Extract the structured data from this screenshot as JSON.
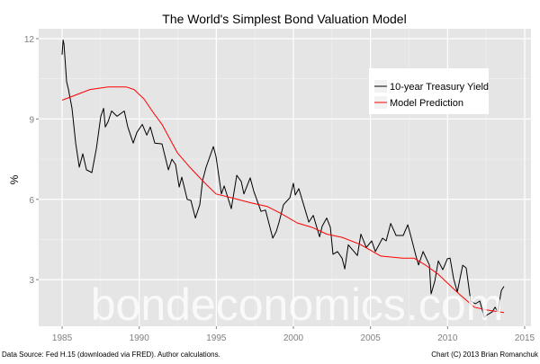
{
  "chart_data": {
    "type": "line",
    "title": "The World's Simplest Bond Valuation Model",
    "xlabel": "",
    "ylabel": "%",
    "xlim": [
      1983.48,
      2015.41
    ],
    "ylim": [
      1.26,
      12.37
    ],
    "xticks": [
      1985,
      1990,
      1995,
      2000,
      2005,
      2010,
      2015
    ],
    "yticks": [
      3,
      6,
      9,
      12
    ],
    "grid": true,
    "legend_position": "top-right",
    "background": "#e5e5e5",
    "series": [
      {
        "name": "10-year Treasury Yield",
        "color": "#000000",
        "points": [
          [
            1985.0,
            11.4
          ],
          [
            1985.06,
            11.95
          ],
          [
            1985.12,
            11.8
          ],
          [
            1985.29,
            10.4
          ],
          [
            1985.41,
            10.1
          ],
          [
            1985.64,
            9.4
          ],
          [
            1985.88,
            8.1
          ],
          [
            1986.11,
            7.2
          ],
          [
            1986.34,
            7.7
          ],
          [
            1986.58,
            7.1
          ],
          [
            1986.93,
            7.0
          ],
          [
            1987.22,
            7.9
          ],
          [
            1987.51,
            9.1
          ],
          [
            1987.69,
            9.4
          ],
          [
            1987.8,
            8.7
          ],
          [
            1987.98,
            8.9
          ],
          [
            1988.21,
            9.3
          ],
          [
            1988.56,
            9.1
          ],
          [
            1989.03,
            9.3
          ],
          [
            1989.26,
            8.7
          ],
          [
            1989.61,
            8.1
          ],
          [
            1989.85,
            8.5
          ],
          [
            1990.2,
            8.8
          ],
          [
            1990.49,
            8.4
          ],
          [
            1990.72,
            8.7
          ],
          [
            1991.01,
            8.1
          ],
          [
            1991.48,
            8.07
          ],
          [
            1991.89,
            7.1
          ],
          [
            1992.12,
            7.5
          ],
          [
            1992.36,
            7.3
          ],
          [
            1992.59,
            6.46
          ],
          [
            1992.76,
            6.83
          ],
          [
            1993.11,
            6.0
          ],
          [
            1993.35,
            5.96
          ],
          [
            1993.64,
            5.3
          ],
          [
            1993.93,
            5.8
          ],
          [
            1994.11,
            6.7
          ],
          [
            1994.34,
            7.2
          ],
          [
            1994.81,
            7.97
          ],
          [
            1994.98,
            7.6
          ],
          [
            1995.33,
            6.2
          ],
          [
            1995.51,
            6.5
          ],
          [
            1995.97,
            5.65
          ],
          [
            1996.33,
            6.9
          ],
          [
            1996.62,
            6.66
          ],
          [
            1996.79,
            6.2
          ],
          [
            1997.2,
            6.8
          ],
          [
            1997.43,
            6.3
          ],
          [
            1997.9,
            5.55
          ],
          [
            1998.19,
            5.6
          ],
          [
            1998.66,
            4.55
          ],
          [
            1998.89,
            4.8
          ],
          [
            1999.07,
            5.15
          ],
          [
            1999.36,
            5.8
          ],
          [
            1999.77,
            6.06
          ],
          [
            2000.0,
            6.6
          ],
          [
            2000.12,
            6.16
          ],
          [
            2000.35,
            6.4
          ],
          [
            2000.65,
            5.83
          ],
          [
            2001.0,
            5.15
          ],
          [
            2001.29,
            5.4
          ],
          [
            2001.7,
            4.6
          ],
          [
            2001.87,
            5.0
          ],
          [
            2002.16,
            5.3
          ],
          [
            2002.4,
            4.95
          ],
          [
            2002.57,
            3.95
          ],
          [
            2002.86,
            4.05
          ],
          [
            2003.16,
            3.8
          ],
          [
            2003.33,
            3.4
          ],
          [
            2003.56,
            4.3
          ],
          [
            2004.15,
            3.9
          ],
          [
            2004.38,
            4.7
          ],
          [
            2004.73,
            4.2
          ],
          [
            2005.08,
            4.45
          ],
          [
            2005.32,
            4.05
          ],
          [
            2005.78,
            4.55
          ],
          [
            2006.02,
            4.45
          ],
          [
            2006.31,
            5.1
          ],
          [
            2006.66,
            4.65
          ],
          [
            2007.12,
            4.65
          ],
          [
            2007.42,
            5.05
          ],
          [
            2007.65,
            4.55
          ],
          [
            2007.94,
            3.9
          ],
          [
            2008.12,
            3.55
          ],
          [
            2008.41,
            4.05
          ],
          [
            2008.82,
            3.55
          ],
          [
            2008.93,
            2.47
          ],
          [
            2009.17,
            2.94
          ],
          [
            2009.4,
            3.7
          ],
          [
            2009.69,
            3.37
          ],
          [
            2009.99,
            3.78
          ],
          [
            2010.16,
            3.8
          ],
          [
            2010.39,
            3.04
          ],
          [
            2010.63,
            2.54
          ],
          [
            2010.98,
            3.54
          ],
          [
            2011.21,
            3.44
          ],
          [
            2011.5,
            2.2
          ],
          [
            2011.8,
            2.1
          ],
          [
            2012.09,
            2.2
          ],
          [
            2012.38,
            1.6
          ],
          [
            2012.61,
            1.7
          ],
          [
            2012.9,
            1.8
          ],
          [
            2013.08,
            1.97
          ],
          [
            2013.25,
            1.8
          ],
          [
            2013.49,
            2.6
          ],
          [
            2013.66,
            2.75
          ]
        ]
      },
      {
        "name": "Model Prediction",
        "color": "#ff0000",
        "points": [
          [
            1985.0,
            9.7
          ],
          [
            1986.81,
            10.1
          ],
          [
            1987.98,
            10.2
          ],
          [
            1989.14,
            10.2
          ],
          [
            1989.67,
            10.1
          ],
          [
            1990.31,
            9.75
          ],
          [
            1990.9,
            9.25
          ],
          [
            1991.48,
            8.8
          ],
          [
            1992.47,
            7.74
          ],
          [
            1993.23,
            7.23
          ],
          [
            1994.22,
            6.63
          ],
          [
            1994.98,
            6.2
          ],
          [
            1995.97,
            6.06
          ],
          [
            1997.32,
            5.86
          ],
          [
            1998.31,
            5.73
          ],
          [
            1999.24,
            5.46
          ],
          [
            2000.24,
            5.12
          ],
          [
            2001.23,
            4.95
          ],
          [
            2002.16,
            4.7
          ],
          [
            2003.16,
            4.58
          ],
          [
            2004.32,
            4.32
          ],
          [
            2005.67,
            3.88
          ],
          [
            2007.07,
            3.8
          ],
          [
            2007.83,
            3.8
          ],
          [
            2008.58,
            3.54
          ],
          [
            2009.4,
            3.2
          ],
          [
            2010.74,
            2.47
          ],
          [
            2011.74,
            1.97
          ],
          [
            2012.5,
            1.87
          ],
          [
            2013.66,
            1.77
          ]
        ]
      }
    ]
  },
  "watermark": "bondeconomics.com",
  "footer": {
    "source": "Data Source: Fed H.15 (downloaded via FRED). Author calculations.",
    "copyright": "Chart (C) 2013 Brian Romanchuk"
  }
}
